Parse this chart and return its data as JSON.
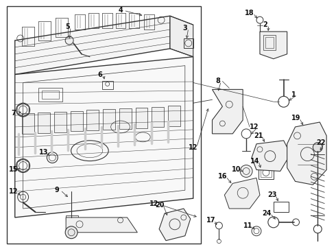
{
  "bg_color": "#ffffff",
  "line_color": "#333333",
  "fig_width": 4.9,
  "fig_height": 3.6,
  "dpi": 100
}
